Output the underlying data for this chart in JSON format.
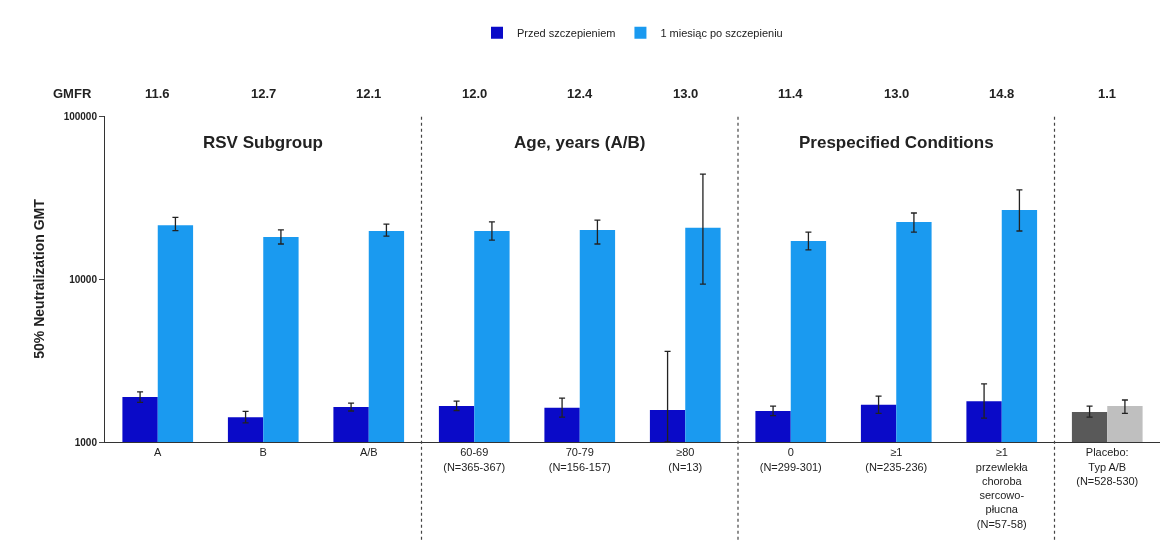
{
  "chart_data": {
    "type": "bar",
    "ylabel": "50% Neutralization GMT",
    "categories": [
      "A",
      "B",
      "A/B",
      "60-69\n(N=365-367)",
      "70-79\n(N=156-157)",
      "≥80\n(N=13)",
      "0\n(N=299-301)",
      "≥1\n(N=235-236)",
      "≥1\nprzewlekła\nchoroba\nsercowo-\npłucna\n(N=57-58)",
      "Placebo:\nTyp A/B\n(N=528-530)"
    ],
    "series": [
      {
        "name": "Przed szczepieniem",
        "colors": [
          "#0a0ac8",
          "#0a0ac8",
          "#0a0ac8",
          "#0a0ac8",
          "#0a0ac8",
          "#0a0ac8",
          "#0a0ac8",
          "#0a0ac8",
          "#0a0ac8",
          "#595959"
        ],
        "values": [
          1890,
          1420,
          1640,
          1660,
          1620,
          1570,
          1550,
          1690,
          1780,
          1530
        ],
        "errors": [
          [
            1750,
            2030
          ],
          [
            1310,
            1540
          ],
          [
            1550,
            1730
          ],
          [
            1560,
            1780
          ],
          [
            1420,
            1860
          ],
          [
            1000,
            3600
          ],
          [
            1450,
            1660
          ],
          [
            1500,
            1910
          ],
          [
            1400,
            2270
          ],
          [
            1420,
            1660
          ]
        ]
      },
      {
        "name": "1 miesiąc po szczepieniu",
        "colors": [
          "#1a9af0",
          "#1a9af0",
          "#1a9af0",
          "#1a9af0",
          "#1a9af0",
          "#1a9af0",
          "#1a9af0",
          "#1a9af0",
          "#1a9af0",
          "#bfbfbf"
        ],
        "values": [
          21400,
          18100,
          19700,
          19700,
          20000,
          20600,
          17100,
          22400,
          26500,
          1660
        ],
        "errors": [
          [
            19800,
            23900
          ],
          [
            16400,
            20000
          ],
          [
            18300,
            21700
          ],
          [
            17300,
            22400
          ],
          [
            16400,
            23000
          ],
          [
            9300,
            44000
          ],
          [
            15100,
            19400
          ],
          [
            19400,
            25400
          ],
          [
            19700,
            35200
          ],
          [
            1500,
            1810
          ]
        ]
      }
    ],
    "log": true,
    "ylim": [
      1000,
      100000
    ],
    "yticks": [
      1000,
      10000,
      100000
    ],
    "legend": "top",
    "annotations": [
      "GMFR",
      "11.6",
      "12.7",
      "12.1",
      "12.0",
      "12.4",
      "13.0",
      "11.4",
      "13.0",
      "14.8",
      "1.1",
      "RSV Subgroup",
      "Age, years (A/B)",
      "Prespecified Conditions"
    ]
  }
}
